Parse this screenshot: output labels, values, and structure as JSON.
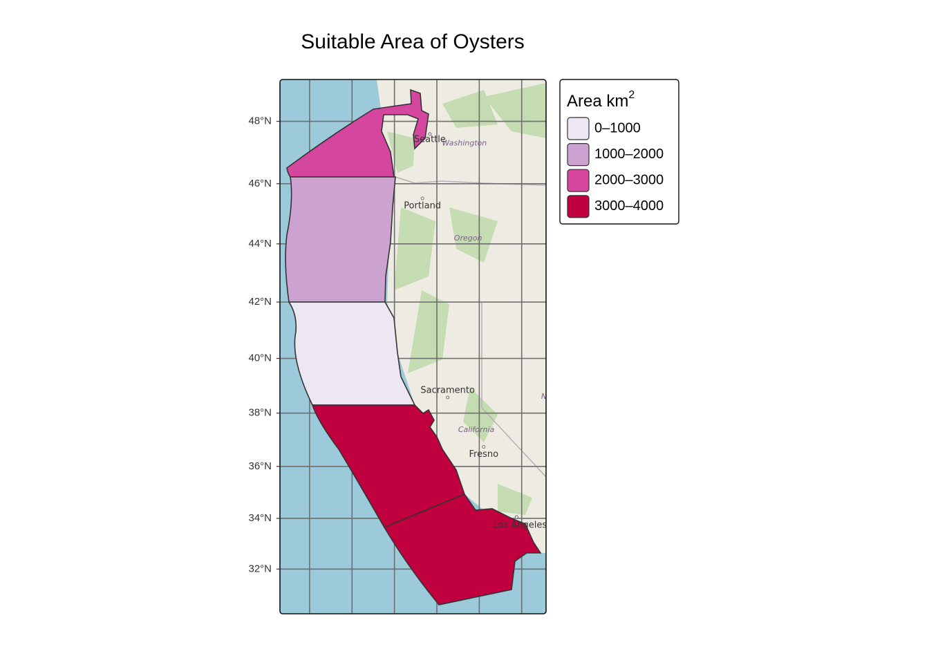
{
  "title": "Suitable Area of Oysters",
  "map": {
    "xlim": [
      -129.4,
      -116.85
    ],
    "ylim": [
      30.2,
      49.3
    ],
    "xticks": [
      -128,
      -126,
      -124,
      -122,
      -120,
      -118
    ],
    "yticks": [
      {
        "value": 32,
        "label": "32°N"
      },
      {
        "value": 34,
        "label": "34°N"
      },
      {
        "value": 36,
        "label": "36°N"
      },
      {
        "value": 38,
        "label": "38°N"
      },
      {
        "value": 40,
        "label": "40°N"
      },
      {
        "value": 42,
        "label": "42°N"
      },
      {
        "value": 44,
        "label": "44°N"
      },
      {
        "value": 46,
        "label": "46°N"
      },
      {
        "value": 48,
        "label": "48°N"
      }
    ],
    "cities": [
      {
        "label": "Seattle",
        "lat": 47.6,
        "lon": -122.33
      },
      {
        "label": "Portland",
        "lat": 45.52,
        "lon": -122.68
      },
      {
        "label": "Sacramento",
        "lat": 38.58,
        "lon": -121.49
      },
      {
        "label": "Fresno",
        "lat": 36.74,
        "lon": -119.79
      },
      {
        "label": "Los Angeles",
        "lat": 34.05,
        "lon": -118.24
      }
    ],
    "states": [
      {
        "label": "Washington",
        "lat": 47.3,
        "lon": -120.7
      },
      {
        "label": "Oregon",
        "lat": 44.18,
        "lon": -120.53
      },
      {
        "label": "California",
        "lat": 37.38,
        "lon": -120.14
      },
      {
        "label": "Nevada",
        "lat": 38.6,
        "lon": -116.4
      }
    ]
  },
  "legend": {
    "title": "Area km",
    "title_sup": "2",
    "items": [
      {
        "label": "0–1000",
        "color": "#ece7f2"
      },
      {
        "label": "1000–2000",
        "color": "#cca3d0"
      },
      {
        "label": "2000–3000",
        "color": "#d5479f"
      },
      {
        "label": "3000–4000",
        "color": "#c0003f"
      }
    ]
  }
}
